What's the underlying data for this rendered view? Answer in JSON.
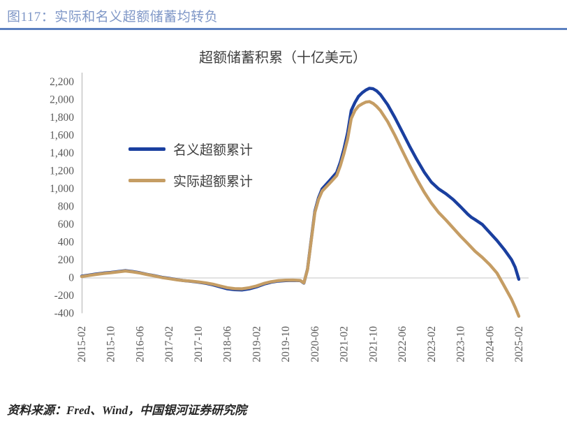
{
  "page": {
    "figure_label": "图117：实际和名义超额储蓄均转负",
    "source_note": "资料来源：Fred、Wind，中国银河证券研究院"
  },
  "colors": {
    "header_text": "#7f97c7",
    "header_rule": "#5b80c0",
    "nominal_line": "#1a3f9f",
    "real_line": "#c59d64",
    "axis_line": "#bfbfbf",
    "zero_line": "#d9d9d9",
    "tick_label": "#595959",
    "title_text": "#3f3f3f"
  },
  "chart_data": {
    "type": "line",
    "title": "超额储蓄积累（十亿美元）",
    "xlabel": "",
    "ylabel": "",
    "ylim": [
      -400,
      2200
    ],
    "ytick_step": 200,
    "grid": "zero-line-only",
    "legend_position": "inside-upper-left",
    "x_unit": "month index from 2015-02",
    "xtick_month_step": 8,
    "xticks": [
      "2015-02",
      "2015-10",
      "2016-06",
      "2017-02",
      "2017-10",
      "2018-06",
      "2019-02",
      "2019-10",
      "2020-06",
      "2021-02",
      "2021-10",
      "2022-06",
      "2023-02",
      "2023-10",
      "2024-06",
      "2025-02"
    ],
    "series": [
      {
        "name": "名义超额累计",
        "color": "#1a3f9f",
        "points": [
          [
            0,
            20
          ],
          [
            2,
            32
          ],
          [
            4,
            45
          ],
          [
            6,
            55
          ],
          [
            8,
            62
          ],
          [
            10,
            72
          ],
          [
            12,
            82
          ],
          [
            14,
            72
          ],
          [
            16,
            58
          ],
          [
            18,
            40
          ],
          [
            20,
            25
          ],
          [
            22,
            8
          ],
          [
            24,
            -5
          ],
          [
            26,
            -18
          ],
          [
            28,
            -30
          ],
          [
            30,
            -38
          ],
          [
            32,
            -48
          ],
          [
            34,
            -60
          ],
          [
            36,
            -78
          ],
          [
            38,
            -100
          ],
          [
            40,
            -122
          ],
          [
            42,
            -132
          ],
          [
            44,
            -135
          ],
          [
            46,
            -122
          ],
          [
            48,
            -100
          ],
          [
            50,
            -70
          ],
          [
            52,
            -48
          ],
          [
            54,
            -35
          ],
          [
            56,
            -30
          ],
          [
            58,
            -28
          ],
          [
            60,
            -30
          ],
          [
            61,
            -58
          ],
          [
            62,
            100
          ],
          [
            63,
            430
          ],
          [
            64,
            750
          ],
          [
            65,
            900
          ],
          [
            66,
            1000
          ],
          [
            68,
            1090
          ],
          [
            70,
            1185
          ],
          [
            71,
            1300
          ],
          [
            72,
            1450
          ],
          [
            73,
            1630
          ],
          [
            74,
            1880
          ],
          [
            75,
            1970
          ],
          [
            76,
            2040
          ],
          [
            77,
            2080
          ],
          [
            78,
            2110
          ],
          [
            79,
            2130
          ],
          [
            80,
            2125
          ],
          [
            81,
            2100
          ],
          [
            82,
            2060
          ],
          [
            84,
            1945
          ],
          [
            86,
            1800
          ],
          [
            88,
            1640
          ],
          [
            90,
            1480
          ],
          [
            92,
            1330
          ],
          [
            94,
            1190
          ],
          [
            96,
            1075
          ],
          [
            98,
            1000
          ],
          [
            100,
            945
          ],
          [
            102,
            880
          ],
          [
            104,
            800
          ],
          [
            106,
            715
          ],
          [
            107,
            680
          ],
          [
            108,
            655
          ],
          [
            110,
            600
          ],
          [
            112,
            510
          ],
          [
            114,
            420
          ],
          [
            116,
            320
          ],
          [
            118,
            205
          ],
          [
            119,
            120
          ],
          [
            120,
            -15
          ]
        ]
      },
      {
        "name": "实际超额累计",
        "color": "#c59d64",
        "points": [
          [
            0,
            15
          ],
          [
            2,
            28
          ],
          [
            4,
            40
          ],
          [
            6,
            50
          ],
          [
            8,
            58
          ],
          [
            10,
            68
          ],
          [
            12,
            78
          ],
          [
            14,
            68
          ],
          [
            16,
            55
          ],
          [
            18,
            38
          ],
          [
            20,
            22
          ],
          [
            22,
            5
          ],
          [
            24,
            -8
          ],
          [
            26,
            -20
          ],
          [
            28,
            -30
          ],
          [
            30,
            -36
          ],
          [
            32,
            -45
          ],
          [
            34,
            -55
          ],
          [
            36,
            -70
          ],
          [
            38,
            -90
          ],
          [
            40,
            -110
          ],
          [
            42,
            -120
          ],
          [
            44,
            -122
          ],
          [
            46,
            -110
          ],
          [
            48,
            -90
          ],
          [
            50,
            -62
          ],
          [
            52,
            -42
          ],
          [
            54,
            -30
          ],
          [
            56,
            -25
          ],
          [
            58,
            -24
          ],
          [
            60,
            -28
          ],
          [
            61,
            -55
          ],
          [
            62,
            95
          ],
          [
            63,
            420
          ],
          [
            64,
            735
          ],
          [
            65,
            880
          ],
          [
            66,
            975
          ],
          [
            68,
            1060
          ],
          [
            70,
            1150
          ],
          [
            71,
            1260
          ],
          [
            72,
            1400
          ],
          [
            73,
            1560
          ],
          [
            74,
            1790
          ],
          [
            75,
            1880
          ],
          [
            76,
            1930
          ],
          [
            77,
            1955
          ],
          [
            78,
            1975
          ],
          [
            79,
            1980
          ],
          [
            80,
            1960
          ],
          [
            81,
            1925
          ],
          [
            82,
            1880
          ],
          [
            84,
            1755
          ],
          [
            86,
            1600
          ],
          [
            88,
            1430
          ],
          [
            90,
            1265
          ],
          [
            92,
            1110
          ],
          [
            94,
            965
          ],
          [
            96,
            840
          ],
          [
            98,
            735
          ],
          [
            100,
            650
          ],
          [
            102,
            560
          ],
          [
            104,
            470
          ],
          [
            106,
            385
          ],
          [
            108,
            300
          ],
          [
            110,
            230
          ],
          [
            112,
            150
          ],
          [
            114,
            55
          ],
          [
            116,
            -90
          ],
          [
            118,
            -240
          ],
          [
            119,
            -330
          ],
          [
            120,
            -430
          ]
        ]
      }
    ]
  }
}
